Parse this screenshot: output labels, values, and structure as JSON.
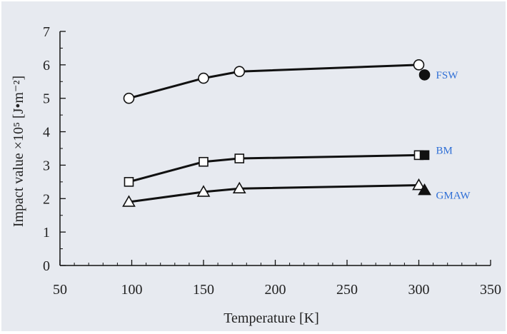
{
  "chart_data": {
    "type": "line",
    "title": "",
    "xlabel": "Temperature [K]",
    "ylabel": "Impact value ×10⁵ [J•m⁻²]",
    "xlim": [
      50,
      350
    ],
    "ylim": [
      0,
      7
    ],
    "xticks": [
      "50",
      "100",
      "150",
      "200",
      "250",
      "300",
      "350"
    ],
    "yticks": [
      "0",
      "1",
      "2",
      "3",
      "4",
      "5",
      "6",
      "7"
    ],
    "grid": false,
    "legend": "labels at right end of each series",
    "series": [
      {
        "name": "FSW",
        "marker": "circle",
        "x": [
          98,
          150,
          175,
          300
        ],
        "y": [
          5.0,
          5.6,
          5.8,
          6.0
        ],
        "filled_point": {
          "x": 304,
          "y": 5.7
        }
      },
      {
        "name": "BM",
        "marker": "square",
        "x": [
          98,
          150,
          175,
          300
        ],
        "y": [
          2.5,
          3.1,
          3.2,
          3.3
        ],
        "filled_point": {
          "x": 304,
          "y": 3.3
        }
      },
      {
        "name": "GMAW",
        "marker": "triangle",
        "x": [
          98,
          150,
          175,
          300
        ],
        "y": [
          1.9,
          2.2,
          2.3,
          2.4
        ],
        "filled_point": {
          "x": 304,
          "y": 2.25
        }
      }
    ],
    "colors": {
      "line": "#111111",
      "label": "#2f6fd6",
      "background": "#e7eaf0"
    }
  }
}
